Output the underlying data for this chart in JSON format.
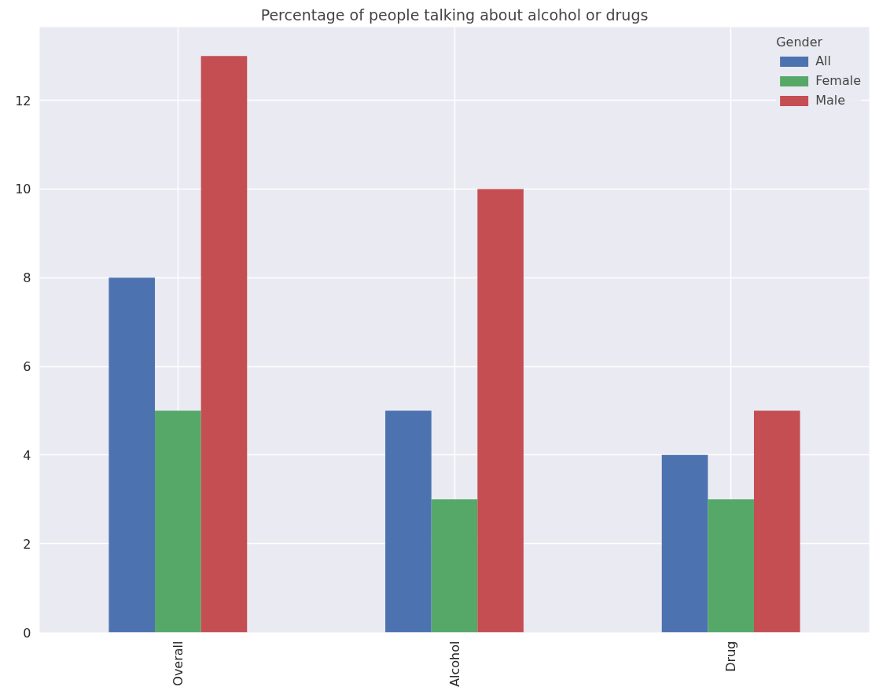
{
  "chart_data": {
    "type": "bar",
    "title": "Percentage of people talking about alcohol or drugs",
    "legend_title": "Gender",
    "categories": [
      "Overall",
      "Alcohol",
      "Drug"
    ],
    "series": [
      {
        "name": "All",
        "color": "#4c72b0",
        "values": [
          8,
          5,
          4
        ]
      },
      {
        "name": "Female",
        "color": "#55a868",
        "values": [
          5,
          3,
          3
        ]
      },
      {
        "name": "Male",
        "color": "#c44e52",
        "values": [
          13,
          10,
          5
        ]
      }
    ],
    "ylim": [
      0,
      13.65
    ],
    "yticks": [
      0,
      2,
      4,
      6,
      8,
      10,
      12
    ],
    "grid": true,
    "legend": "top right"
  }
}
